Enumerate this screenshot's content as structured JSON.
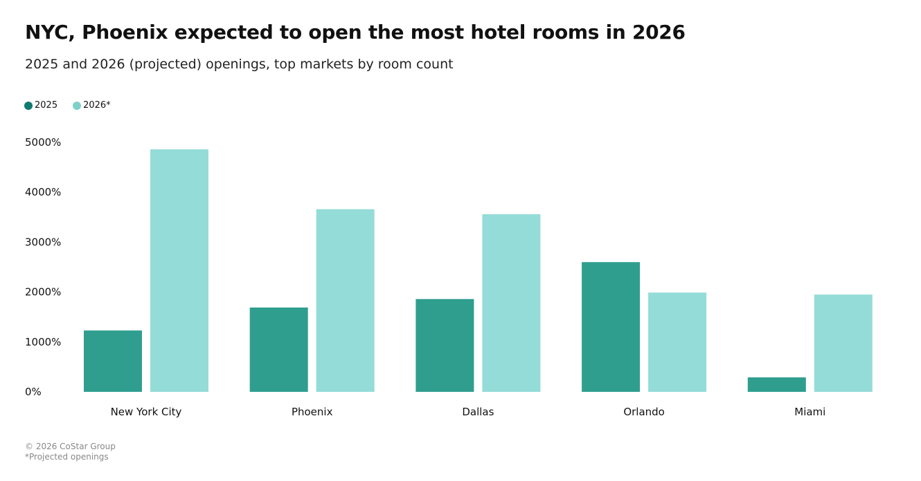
{
  "chart_data": {
    "type": "bar",
    "title": "NYC, Phoenix expected to open the most hotel rooms in 2026",
    "subtitle": "2025 and 2026 (projected) openings, top markets by room count",
    "categories": [
      "New York City",
      "Phoenix",
      "Dallas",
      "Orlando",
      "Miami"
    ],
    "series": [
      {
        "name": "2025",
        "color": "#2f9e8f",
        "legend_color": "#0e7c70",
        "values": [
          1230,
          1690,
          1860,
          2600,
          290
        ]
      },
      {
        "name": "2026*",
        "color": "#94dcd7",
        "legend_color": "#7fd0c8",
        "values": [
          4860,
          3660,
          3560,
          1990,
          1950
        ]
      }
    ],
    "ylim": [
      0,
      5000
    ],
    "yticks": [
      0,
      1000,
      2000,
      3000,
      4000,
      5000
    ],
    "ytick_labels": [
      "0%",
      "1000%",
      "2000%",
      "3000%",
      "4000%",
      "5000%"
    ],
    "grid": false,
    "legend_position": "top-left",
    "xlabel": "",
    "ylabel": ""
  },
  "footer": {
    "copyright": "© 2026 CoStar Group",
    "note": "*Projected openings"
  }
}
